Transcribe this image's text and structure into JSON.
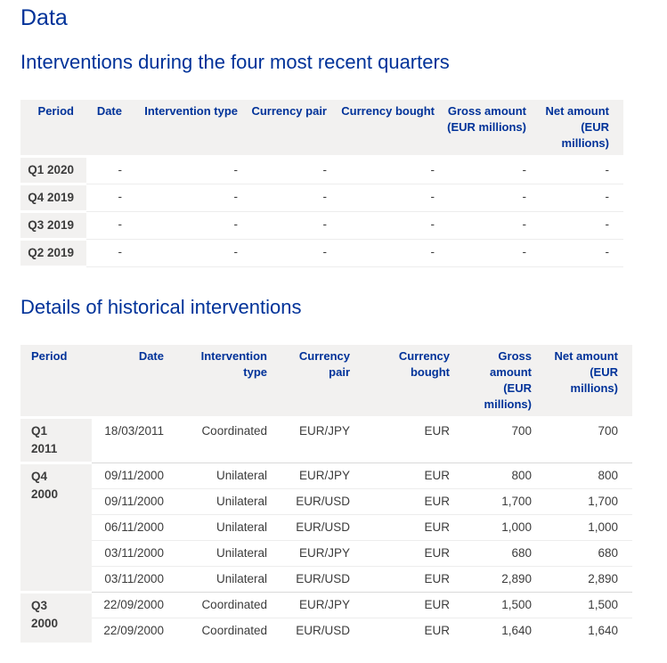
{
  "page": {
    "title": "Data"
  },
  "recent": {
    "heading": "Interventions during the four most recent quarters",
    "columns": [
      "Period",
      "Date",
      "Intervention type",
      "Currency pair",
      "Currency bought",
      "Gross amount\n(EUR millions)",
      "Net amount\n(EUR millions)"
    ],
    "rows": [
      {
        "period": "Q1 2020",
        "date": "-",
        "type": "-",
        "pair": "-",
        "bought": "-",
        "gross": "-",
        "net": "-"
      },
      {
        "period": "Q4 2019",
        "date": "-",
        "type": "-",
        "pair": "-",
        "bought": "-",
        "gross": "-",
        "net": "-"
      },
      {
        "period": "Q3 2019",
        "date": "-",
        "type": "-",
        "pair": "-",
        "bought": "-",
        "gross": "-",
        "net": "-"
      },
      {
        "period": "Q2 2019",
        "date": "-",
        "type": "-",
        "pair": "-",
        "bought": "-",
        "gross": "-",
        "net": "-"
      }
    ]
  },
  "historical": {
    "heading": "Details of historical interventions",
    "columns": [
      "Period",
      "Date",
      "Intervention\ntype",
      "Currency\npair",
      "Currency\nbought",
      "Gross\namount\n(EUR\nmillions)",
      "Net amount\n(EUR\nmillions)"
    ],
    "groups": [
      {
        "period": "Q1\n2011",
        "rows": [
          {
            "date": "18/03/2011",
            "type": "Coordinated",
            "pair": "EUR/JPY",
            "bought": "EUR",
            "gross": "700",
            "net": "700"
          }
        ]
      },
      {
        "period": "Q4\n2000",
        "rows": [
          {
            "date": "09/11/2000",
            "type": "Unilateral",
            "pair": "EUR/JPY",
            "bought": "EUR",
            "gross": "800",
            "net": "800"
          },
          {
            "date": "09/11/2000",
            "type": "Unilateral",
            "pair": "EUR/USD",
            "bought": "EUR",
            "gross": "1,700",
            "net": "1,700"
          },
          {
            "date": "06/11/2000",
            "type": "Unilateral",
            "pair": "EUR/USD",
            "bought": "EUR",
            "gross": "1,000",
            "net": "1,000"
          },
          {
            "date": "03/11/2000",
            "type": "Unilateral",
            "pair": "EUR/JPY",
            "bought": "EUR",
            "gross": "680",
            "net": "680"
          },
          {
            "date": "03/11/2000",
            "type": "Unilateral",
            "pair": "EUR/USD",
            "bought": "EUR",
            "gross": "2,890",
            "net": "2,890"
          }
        ]
      },
      {
        "period": "Q3\n2000",
        "rows": [
          {
            "date": "22/09/2000",
            "type": "Coordinated",
            "pair": "EUR/JPY",
            "bought": "EUR",
            "gross": "1,500",
            "net": "1,500"
          },
          {
            "date": "22/09/2000",
            "type": "Coordinated",
            "pair": "EUR/USD",
            "bought": "EUR",
            "gross": "1,640",
            "net": "1,640"
          }
        ]
      }
    ]
  },
  "colors": {
    "heading_blue": "#003299",
    "table_header_text": "#003299",
    "table_header_bg": "#f2f1f0",
    "body_text": "#3c3c3c",
    "row_line": "#ededed",
    "group_line": "#d9d9d9"
  }
}
